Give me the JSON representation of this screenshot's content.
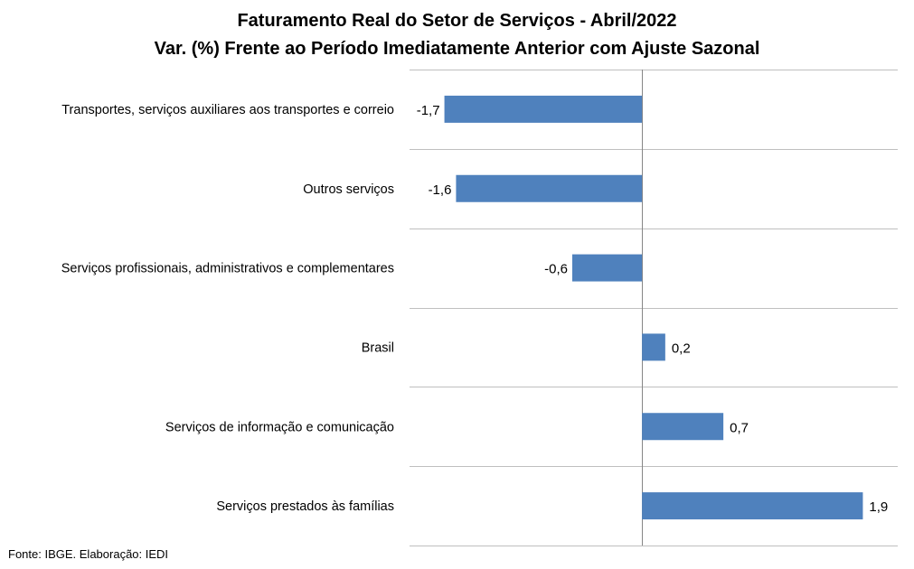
{
  "chart_data": {
    "type": "bar",
    "orientation": "horizontal",
    "title": "Faturamento Real do Setor de Serviços - Abril/2022",
    "subtitle": "Var. (%) Frente ao Período Imediatamente Anterior com Ajuste Sazonal",
    "categories": [
      "Transportes, serviços auxiliares aos transportes e correio",
      "Outros serviços",
      "Serviços profissionais, administrativos e complementares",
      "Brasil",
      "Serviços de informação e comunicação",
      "Serviços prestados às famílias"
    ],
    "values": [
      -1.7,
      -1.6,
      -0.6,
      0.2,
      0.7,
      1.9
    ],
    "value_labels": [
      "-1,7",
      "-1,6",
      "-0,6",
      "0,2",
      "0,7",
      "1,9"
    ],
    "xlim": [
      -2.0,
      2.2
    ],
    "bar_color": "#4F81BD",
    "grid": true,
    "legend": "none",
    "source": "Fonte: IBGE. Elaboração: IEDI"
  }
}
